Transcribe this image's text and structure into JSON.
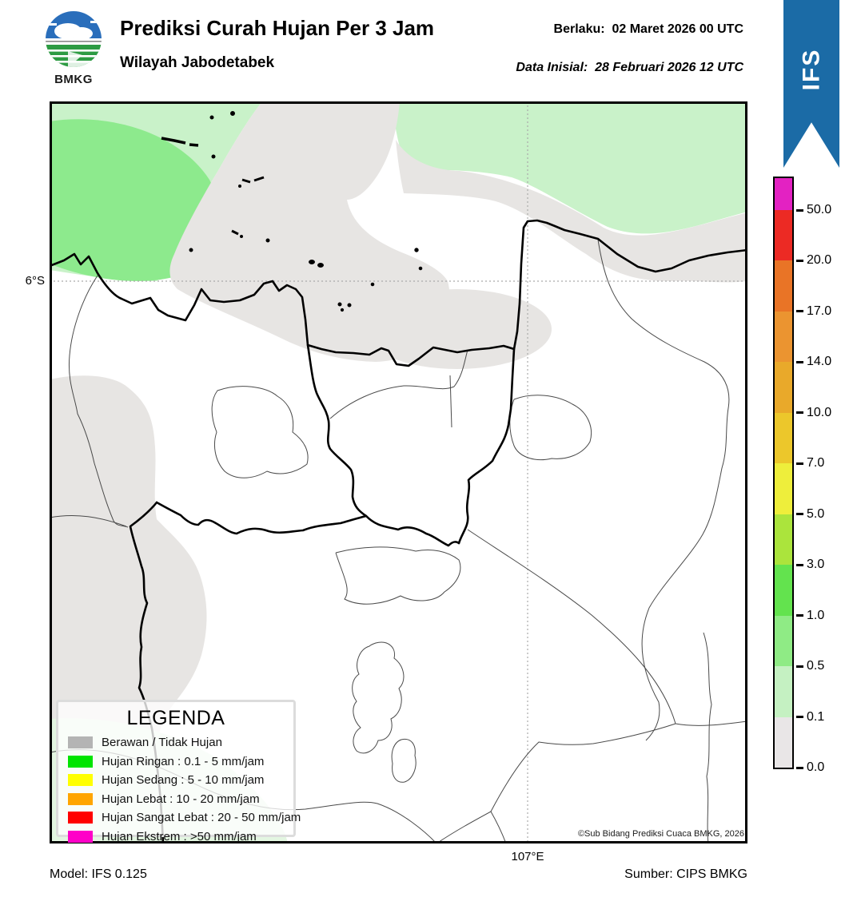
{
  "header": {
    "logo_text": "BMKG",
    "title": "Prediksi Curah Hujan Per 3 Jam",
    "subtitle": "Wilayah Jabodetabek",
    "valid_label": "Berlaku:",
    "valid_value": "02 Maret 2026 00 UTC",
    "init_label": "Data Inisial:",
    "init_value": "28 Februari 2026 12 UTC",
    "model_tag": "IFS",
    "ribbon_color": "#1b6ba6"
  },
  "map": {
    "lat_label": "6°S",
    "lon_label": "107°E",
    "copyright": "©Sub Bidang Prediksi Cuaca BMKG, 2026",
    "shade_colors": {
      "light_rain_low": "#c9f2c9",
      "light_rain_mid": "#8dea8d",
      "cloud": "#e7e5e3",
      "trace": "#e3f6e1"
    }
  },
  "legend": {
    "title": "LEGENDA",
    "items": [
      {
        "label": "Berawan / Tidak Hujan",
        "color": "#b4b4b4"
      },
      {
        "label": "Hujan Ringan : 0.1 - 5 mm/jam",
        "color": "#00e400"
      },
      {
        "label": "Hujan Sedang : 5 - 10 mm/jam",
        "color": "#ffff00"
      },
      {
        "label": "Hujan Lebat : 10 - 20 mm/jam",
        "color": "#ffa500"
      },
      {
        "label": "Hujan Sangat Lebat : 20 - 50 mm/jam",
        "color": "#ff0000"
      },
      {
        "label": "Hujan Ekstrem : >50 mm/jam",
        "color": "#ff00c8"
      }
    ]
  },
  "colorbar": {
    "tick_labels": [
      "50.0",
      "20.0",
      "17.0",
      "14.0",
      "10.0",
      "7.0",
      "5.0",
      "3.0",
      "1.0",
      "0.5",
      "0.1",
      "0.0"
    ],
    "segment_colors_top_to_bottom": [
      "#e322c2",
      "#ec2a24",
      "#e97426",
      "#eb9430",
      "#e9a92a",
      "#ecc72b",
      "#eeee3b",
      "#abe43c",
      "#63e34e",
      "#8feb85",
      "#c5f1c2",
      "#e9e6e7"
    ]
  },
  "footer": {
    "model_label": "Model: IFS 0.125",
    "source_label": "Sumber: CIPS BMKG"
  }
}
